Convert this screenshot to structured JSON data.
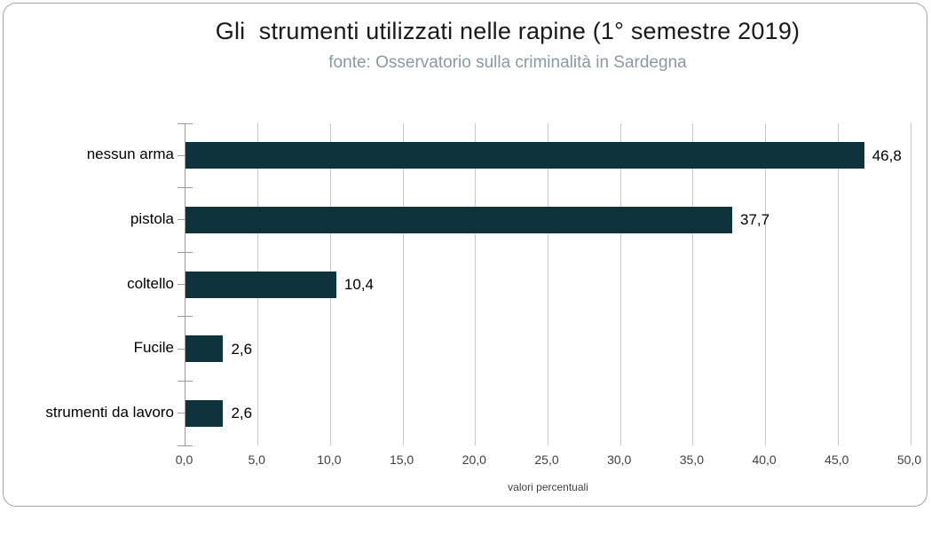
{
  "chart_data": {
    "type": "bar",
    "orientation": "horizontal",
    "title": "Gli  strumenti utilizzati nelle rapine (1° semestre 2019)",
    "subtitle": "fonte: Osservatorio sulla criminalità in Sardegna",
    "categories": [
      "nessun arma",
      "pistola",
      "coltello",
      "Fucile",
      "strumenti da lavoro"
    ],
    "values": [
      46.8,
      37.7,
      10.4,
      2.6,
      2.6
    ],
    "value_labels": [
      "46,8",
      "37,7",
      "10,4",
      "2,6",
      "2,6"
    ],
    "xlabel": "valori percentuali",
    "ylabel": "",
    "xlim": [
      0,
      50
    ],
    "xtick_step": 5,
    "xtick_labels": [
      "0,0",
      "5,0",
      "10,0",
      "15,0",
      "20,0",
      "25,0",
      "30,0",
      "35,0",
      "40,0",
      "45,0",
      "50,0"
    ],
    "grid": true,
    "legend": false,
    "colors": {
      "bar": "#0f333d",
      "gridline": "#c9c9c9",
      "axis": "#9b9b9b",
      "title_text": "#1a1a1a",
      "subtitle_text": "#8a99a3",
      "tick_text": "#404040",
      "frame_border": "#a6a6a6"
    }
  }
}
